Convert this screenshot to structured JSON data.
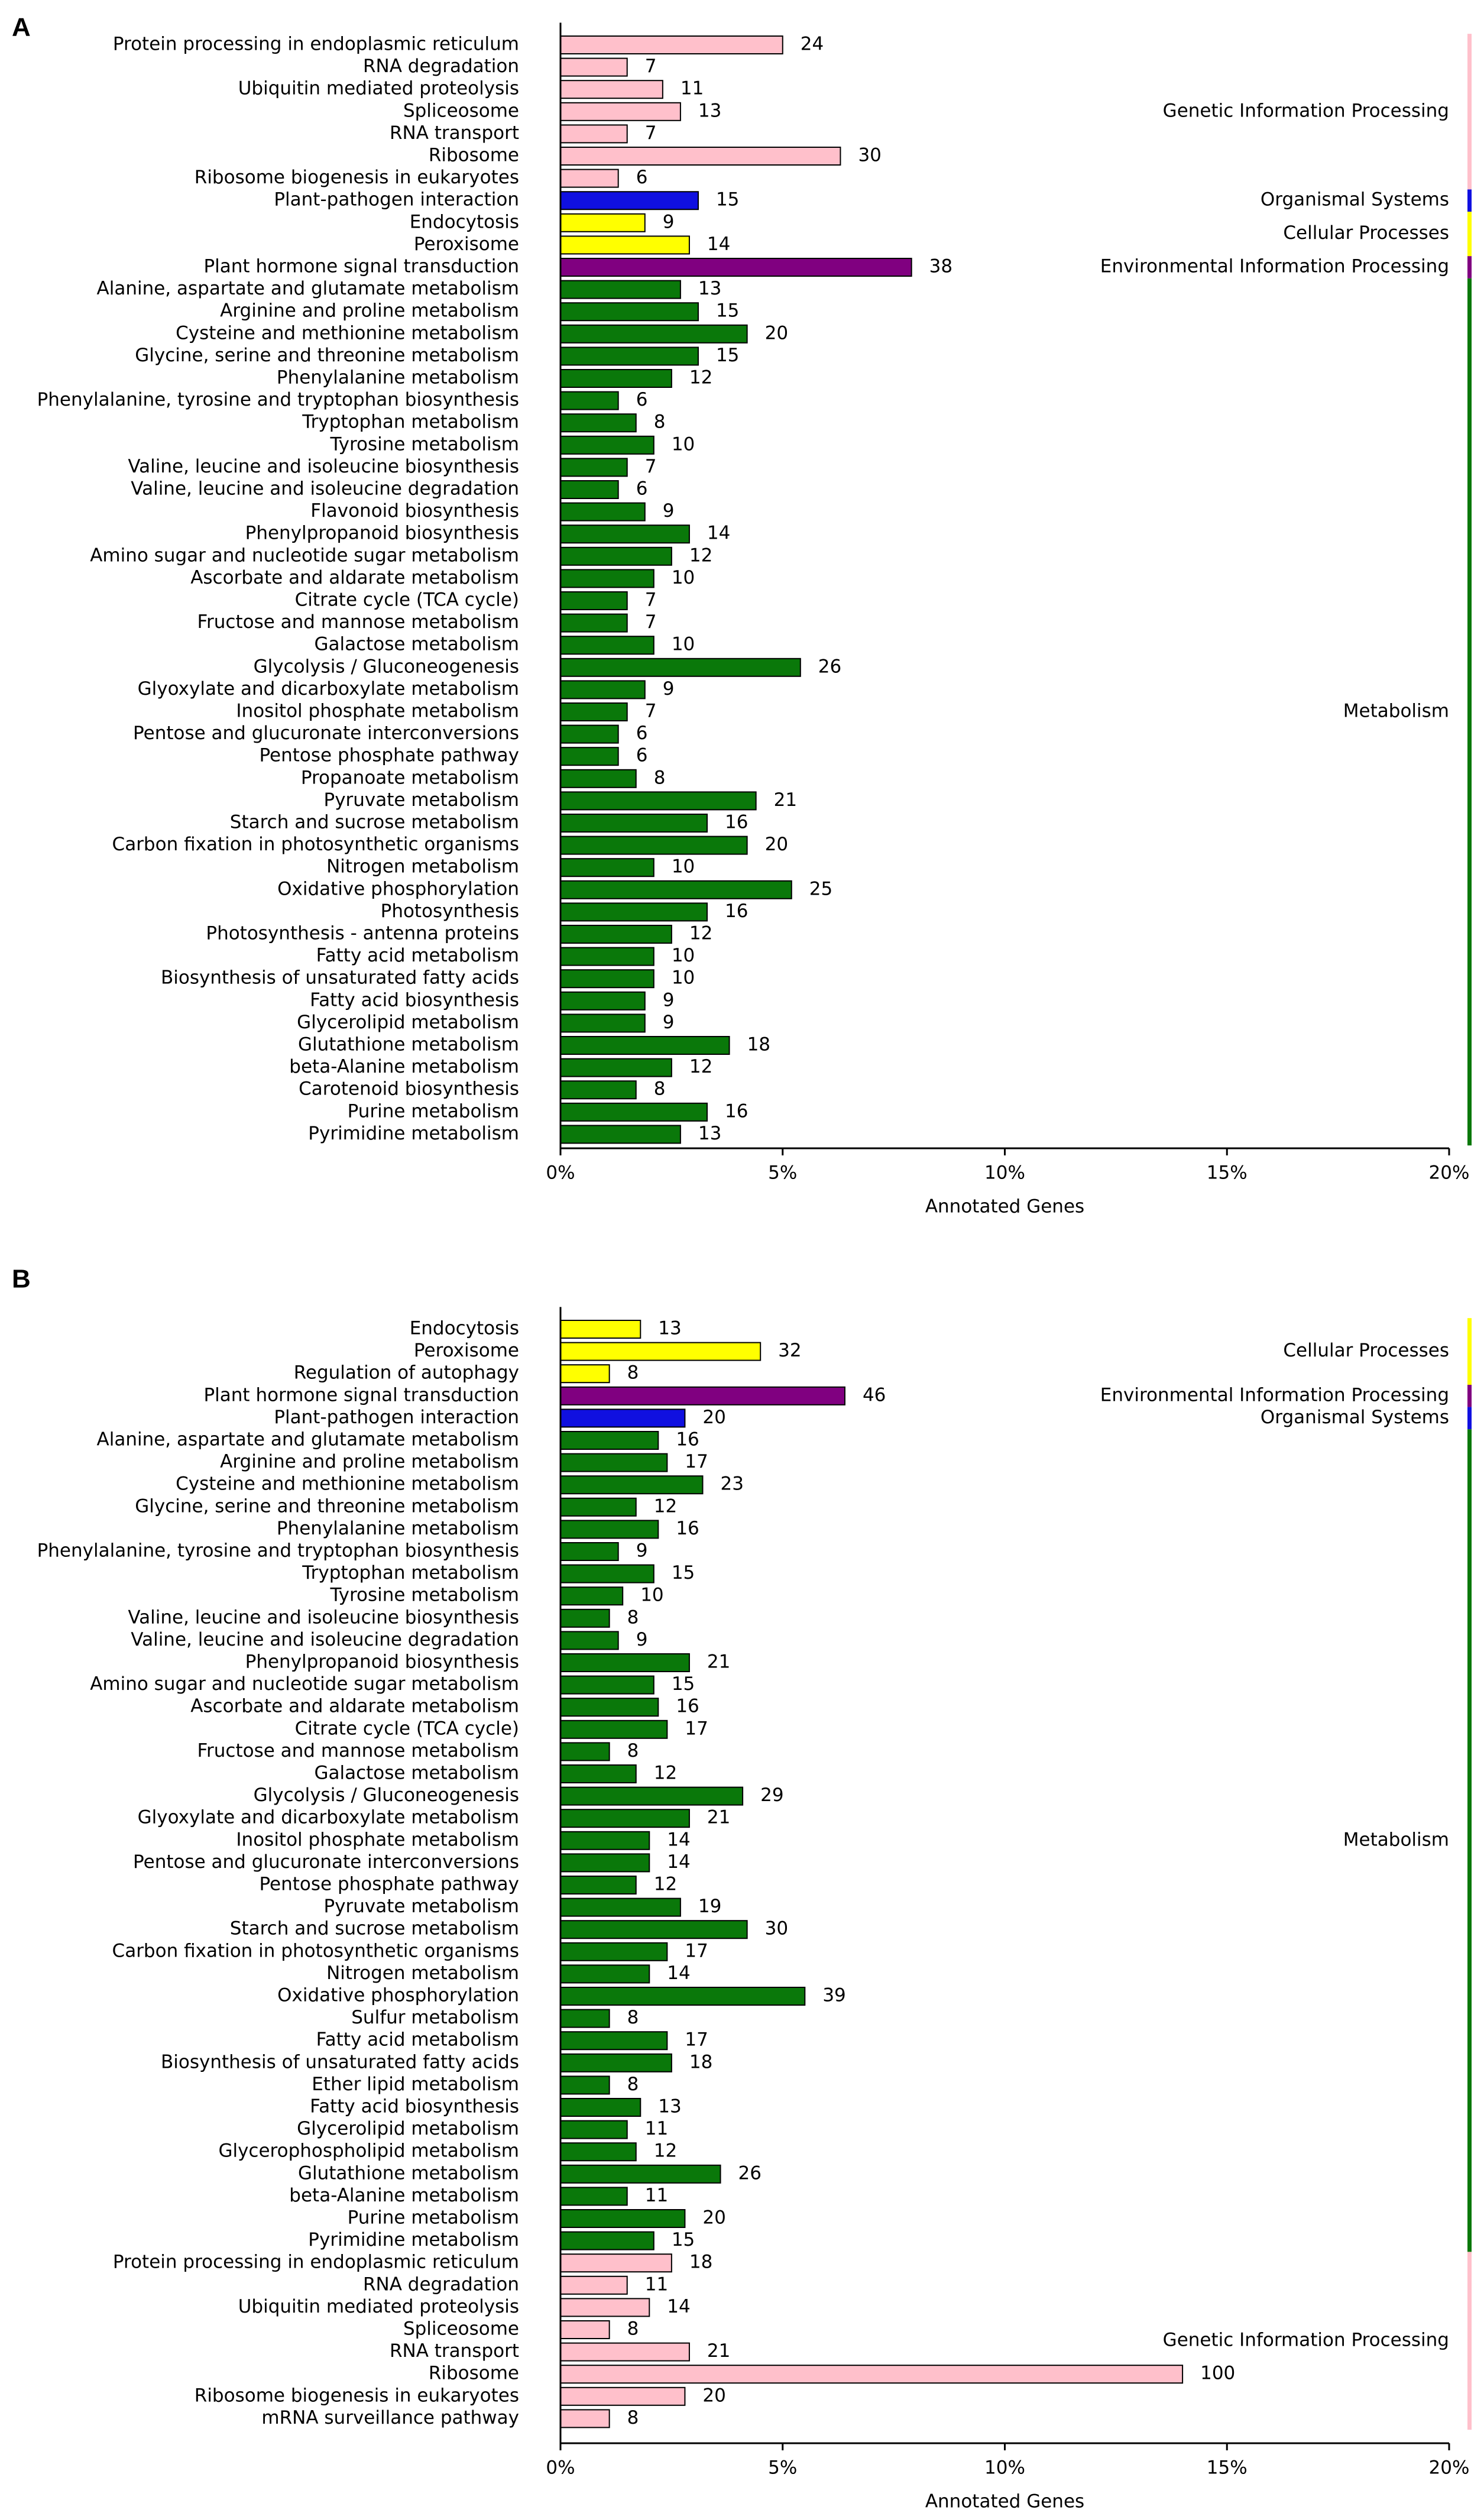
{
  "chart_data": [
    {
      "type": "bar",
      "panel": "A",
      "xlabel": "Annotated Genes",
      "xlim": [
        0,
        20
      ],
      "xticks": [
        {
          "value": 0,
          "label": "0%"
        },
        {
          "value": 5,
          "label": "5%"
        },
        {
          "value": 10,
          "label": "10%"
        },
        {
          "value": 15,
          "label": "15%"
        },
        {
          "value": 20,
          "label": "20%"
        }
      ],
      "series": [
        {
          "name": "Genetic Information Processing",
          "color": "#ffc0cb",
          "categories": [
            "Protein processing in endoplasmic reticulum",
            "RNA degradation",
            "Ubiquitin mediated proteolysis",
            "Spliceosome",
            "RNA transport",
            "Ribosome",
            "Ribosome biogenesis in eukaryotes"
          ],
          "values": [
            5.0,
            1.5,
            2.3,
            2.7,
            1.5,
            6.3,
            1.3
          ],
          "counts": [
            24,
            7,
            11,
            13,
            7,
            30,
            6
          ]
        },
        {
          "name": "Organismal Systems",
          "color": "#1010e0",
          "categories": [
            "Plant-pathogen interaction"
          ],
          "values": [
            3.1
          ],
          "counts": [
            15
          ]
        },
        {
          "name": "Cellular Processes",
          "color": "#ffff00",
          "categories": [
            "Endocytosis",
            "Peroxisome"
          ],
          "values": [
            1.9,
            2.9
          ],
          "counts": [
            9,
            14
          ]
        },
        {
          "name": "Environmental Information Processing",
          "color": "#800080",
          "categories": [
            "Plant hormone signal transduction"
          ],
          "values": [
            7.9
          ],
          "counts": [
            38
          ]
        },
        {
          "name": "Metabolism",
          "color": "#0a780a",
          "categories": [
            "Alanine, aspartate and glutamate metabolism",
            "Arginine and proline metabolism",
            "Cysteine and methionine metabolism",
            "Glycine, serine and threonine metabolism",
            "Phenylalanine metabolism",
            "Phenylalanine, tyrosine and tryptophan biosynthesis",
            "Tryptophan metabolism",
            "Tyrosine metabolism",
            "Valine, leucine and isoleucine biosynthesis",
            "Valine, leucine and isoleucine degradation",
            "Flavonoid biosynthesis",
            "Phenylpropanoid biosynthesis",
            "Amino sugar and nucleotide sugar metabolism",
            "Ascorbate and aldarate metabolism",
            "Citrate cycle (TCA cycle)",
            "Fructose and mannose metabolism",
            "Galactose metabolism",
            "Glycolysis / Gluconeogenesis",
            "Glyoxylate and dicarboxylate metabolism",
            "Inositol phosphate metabolism",
            "Pentose and glucuronate interconversions",
            "Pentose phosphate pathway",
            "Propanoate metabolism",
            "Pyruvate metabolism",
            "Starch and sucrose metabolism",
            "Carbon fixation in photosynthetic organisms",
            "Nitrogen metabolism",
            "Oxidative phosphorylation",
            "Photosynthesis",
            "Photosynthesis - antenna proteins",
            "Fatty acid metabolism",
            "Biosynthesis of unsaturated fatty acids",
            "Fatty acid biosynthesis",
            "Glycerolipid metabolism",
            "Glutathione metabolism",
            "beta-Alanine metabolism",
            "Carotenoid biosynthesis",
            "Purine metabolism",
            "Pyrimidine metabolism"
          ],
          "values": [
            2.7,
            3.1,
            4.2,
            3.1,
            2.5,
            1.3,
            1.7,
            2.1,
            1.5,
            1.3,
            1.9,
            2.9,
            2.5,
            2.1,
            1.5,
            1.5,
            2.1,
            5.4,
            1.9,
            1.5,
            1.3,
            1.3,
            1.7,
            4.4,
            3.3,
            4.2,
            2.1,
            5.2,
            3.3,
            2.5,
            2.1,
            2.1,
            1.9,
            1.9,
            3.8,
            2.5,
            1.7,
            3.3,
            2.7
          ],
          "counts": [
            13,
            15,
            20,
            15,
            12,
            6,
            8,
            10,
            7,
            6,
            9,
            14,
            12,
            10,
            7,
            7,
            10,
            26,
            9,
            7,
            6,
            6,
            8,
            21,
            16,
            20,
            10,
            25,
            16,
            12,
            10,
            10,
            9,
            9,
            18,
            12,
            8,
            16,
            13
          ]
        }
      ]
    },
    {
      "type": "bar",
      "panel": "B",
      "xlabel": "Annotated Genes",
      "xlim": [
        0,
        20
      ],
      "xticks": [
        {
          "value": 0,
          "label": "0%"
        },
        {
          "value": 5,
          "label": "5%"
        },
        {
          "value": 10,
          "label": "10%"
        },
        {
          "value": 15,
          "label": "15%"
        },
        {
          "value": 20,
          "label": "20%"
        }
      ],
      "series": [
        {
          "name": "Cellular Processes",
          "color": "#ffff00",
          "categories": [
            "Endocytosis",
            "Peroxisome",
            "Regulation of autophagy"
          ],
          "values": [
            1.8,
            4.5,
            1.1
          ],
          "counts": [
            13,
            32,
            8
          ]
        },
        {
          "name": "Environmental Information Processing",
          "color": "#800080",
          "categories": [
            "Plant hormone signal transduction"
          ],
          "values": [
            6.4
          ],
          "counts": [
            46
          ]
        },
        {
          "name": "Organismal Systems",
          "color": "#1010e0",
          "categories": [
            "Plant-pathogen interaction"
          ],
          "values": [
            2.8
          ],
          "counts": [
            20
          ]
        },
        {
          "name": "Metabolism",
          "color": "#0a780a",
          "categories": [
            "Alanine, aspartate and glutamate metabolism",
            "Arginine and proline metabolism",
            "Cysteine and methionine metabolism",
            "Glycine, serine and threonine metabolism",
            "Phenylalanine metabolism",
            "Phenylalanine, tyrosine and tryptophan biosynthesis",
            "Tryptophan metabolism",
            "Tyrosine metabolism",
            "Valine, leucine and isoleucine biosynthesis",
            "Valine, leucine and isoleucine degradation",
            "Phenylpropanoid biosynthesis",
            "Amino sugar and nucleotide sugar metabolism",
            "Ascorbate and aldarate metabolism",
            "Citrate cycle (TCA cycle)",
            "Fructose and mannose metabolism",
            "Galactose metabolism",
            "Glycolysis / Gluconeogenesis",
            "Glyoxylate and dicarboxylate metabolism",
            "Inositol phosphate metabolism",
            "Pentose and glucuronate interconversions",
            "Pentose phosphate pathway",
            "Pyruvate metabolism",
            "Starch and sucrose metabolism",
            "Carbon fixation in photosynthetic organisms",
            "Nitrogen metabolism",
            "Oxidative phosphorylation",
            "Sulfur metabolism",
            "Fatty acid metabolism",
            "Biosynthesis of unsaturated fatty acids",
            "Ether lipid metabolism",
            "Fatty acid biosynthesis",
            "Glycerolipid metabolism",
            "Glycerophospholipid metabolism",
            "Glutathione metabolism",
            "beta-Alanine metabolism",
            "Purine metabolism",
            "Pyrimidine metabolism"
          ],
          "values": [
            2.2,
            2.4,
            3.2,
            1.7,
            2.2,
            1.3,
            2.1,
            1.4,
            1.1,
            1.3,
            2.9,
            2.1,
            2.2,
            2.4,
            1.1,
            1.7,
            4.1,
            2.9,
            2.0,
            2.0,
            1.7,
            2.7,
            4.2,
            2.4,
            2.0,
            5.5,
            1.1,
            2.4,
            2.5,
            1.1,
            1.8,
            1.5,
            1.7,
            3.6,
            1.5,
            2.8,
            2.1
          ],
          "counts": [
            16,
            17,
            23,
            12,
            16,
            9,
            15,
            10,
            8,
            9,
            21,
            15,
            16,
            17,
            8,
            12,
            29,
            21,
            14,
            14,
            12,
            19,
            30,
            17,
            14,
            39,
            8,
            17,
            18,
            8,
            13,
            11,
            12,
            26,
            11,
            20,
            15
          ]
        },
        {
          "name": "Genetic Information Processing",
          "color": "#ffc0cb",
          "categories": [
            "Protein processing in endoplasmic reticulum",
            "RNA degradation",
            "Ubiquitin mediated proteolysis",
            "Spliceosome",
            "RNA transport",
            "Ribosome",
            "Ribosome biogenesis in eukaryotes",
            "mRNA surveillance pathway"
          ],
          "values": [
            2.5,
            1.5,
            2.0,
            1.1,
            2.9,
            14.0,
            2.8,
            1.1
          ],
          "counts": [
            18,
            11,
            14,
            8,
            21,
            100,
            20,
            8
          ]
        }
      ]
    }
  ]
}
